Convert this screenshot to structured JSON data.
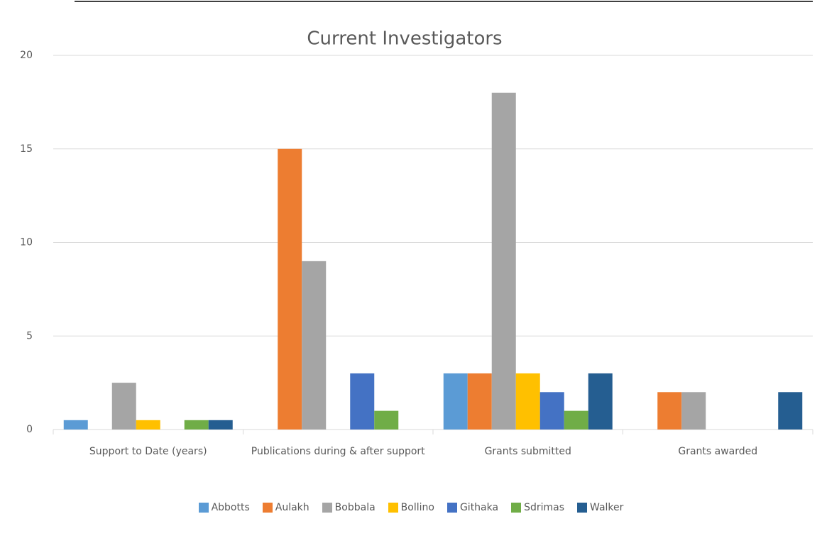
{
  "chart_data": {
    "type": "bar",
    "title": "Current Investigators",
    "categories": [
      "Support to Date (years)",
      "Publications during & after support",
      "Grants submitted",
      "Grants awarded"
    ],
    "series": [
      {
        "name": "Abbotts",
        "color": "#5b9bd5",
        "values": [
          0.5,
          0,
          3,
          0
        ]
      },
      {
        "name": "Aulakh",
        "color": "#ed7d31",
        "values": [
          0,
          15,
          3,
          2
        ]
      },
      {
        "name": "Bobbala",
        "color": "#a5a5a5",
        "values": [
          2.5,
          9,
          18,
          2
        ]
      },
      {
        "name": "Bollino",
        "color": "#ffc000",
        "values": [
          0.5,
          0,
          3,
          0
        ]
      },
      {
        "name": "Githaka",
        "color": "#4472c4",
        "values": [
          0,
          3,
          2,
          0
        ]
      },
      {
        "name": "Sdrimas",
        "color": "#70ad47",
        "values": [
          0.5,
          1,
          1,
          0
        ]
      },
      {
        "name": "Walker",
        "color": "#255e91",
        "values": [
          0.5,
          0,
          3,
          2
        ]
      }
    ],
    "ylim": [
      0,
      20
    ],
    "yticks": [
      0,
      5,
      10,
      15,
      20
    ],
    "grid": true
  }
}
